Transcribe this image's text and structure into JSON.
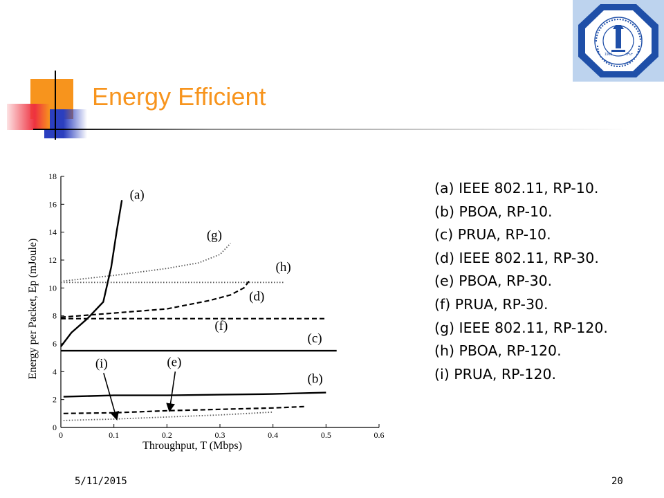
{
  "slide": {
    "title": "Energy Efficient",
    "date": "5/11/2015",
    "page_number": "20"
  },
  "colors": {
    "title": "#f7941d",
    "accent_orange": "#f7941d",
    "accent_blue": "#2b3fbf",
    "accent_red": "#ee3140",
    "logo_background": "#bdd3ee",
    "logo_seal": "#1f4fa8"
  },
  "logo": {
    "icon": "university-seal-icon",
    "year_left": "1963",
    "year_right": "١٣٨٣",
    "ring_text": "KING FAHD UNIVERSITY OF PETROLEUM & MINERALS",
    "arabic_text": "جامعة الملك فهد للبترول والمعادن"
  },
  "legend": [
    "(a)  IEEE 802.11, RP-10.",
    "(b)  PBOA, RP-10.",
    "(c)  PRUA, RP-10.",
    "(d)  IEEE 802.11, RP-30.",
    "(e)  PBOA, RP-30.",
    "(f)  PRUA, RP-30.",
    "(g)  IEEE 802.11, RP-120.",
    "(h)  PBOA, RP-120.",
    "(i)  PRUA, RP-120."
  ],
  "chart_data": {
    "type": "line",
    "xlabel": "Throughput, T (Mbps)",
    "ylabel": "Energy per Packet, Ep (mJoule)",
    "xlim": [
      0,
      0.6
    ],
    "ylim": [
      0,
      18
    ],
    "xticks": [
      "0",
      "0.1",
      "0.2",
      "0.3",
      "0.4",
      "0.5",
      "0.6"
    ],
    "yticks": [
      "0",
      "2",
      "4",
      "6",
      "8",
      "10",
      "12",
      "14",
      "16",
      "18"
    ],
    "grid": false,
    "legend_position": "right",
    "series": [
      {
        "name": "(a)",
        "style": "solid",
        "x": [
          0,
          0.02,
          0.05,
          0.08,
          0.095,
          0.105,
          0.115
        ],
        "y": [
          5.8,
          6.8,
          7.8,
          9.0,
          11.5,
          14.0,
          16.3
        ]
      },
      {
        "name": "(b)",
        "style": "solid",
        "x": [
          0.005,
          0.1,
          0.2,
          0.3,
          0.4,
          0.5
        ],
        "y": [
          2.2,
          2.3,
          2.3,
          2.35,
          2.4,
          2.5
        ]
      },
      {
        "name": "(c)",
        "style": "solid",
        "x": [
          0,
          0.52
        ],
        "y": [
          5.5,
          5.5
        ]
      },
      {
        "name": "(d)",
        "style": "dashed",
        "x": [
          0,
          0.1,
          0.2,
          0.28,
          0.32,
          0.345,
          0.355
        ],
        "y": [
          7.9,
          8.2,
          8.5,
          9.1,
          9.5,
          10.0,
          10.5
        ]
      },
      {
        "name": "(e)",
        "style": "dashed",
        "x": [
          0.005,
          0.1,
          0.2,
          0.3,
          0.4,
          0.46
        ],
        "y": [
          1.0,
          1.05,
          1.2,
          1.3,
          1.4,
          1.5
        ]
      },
      {
        "name": "(f)",
        "style": "dashed",
        "x": [
          0,
          0.5
        ],
        "y": [
          7.8,
          7.8
        ]
      },
      {
        "name": "(g)",
        "style": "dotted",
        "x": [
          0.005,
          0.1,
          0.2,
          0.26,
          0.3,
          0.32
        ],
        "y": [
          10.5,
          10.9,
          11.4,
          11.8,
          12.4,
          13.2
        ]
      },
      {
        "name": "(h)",
        "style": "dotted",
        "x": [
          0,
          0.42
        ],
        "y": [
          10.4,
          10.4
        ]
      },
      {
        "name": "(i)",
        "style": "dotted",
        "x": [
          0.005,
          0.1,
          0.2,
          0.3,
          0.4
        ],
        "y": [
          0.5,
          0.6,
          0.75,
          0.9,
          1.1
        ]
      }
    ],
    "annotations": [
      {
        "label": "(a)",
        "x": 0.13,
        "y": 16.4
      },
      {
        "label": "(b)",
        "x": 0.465,
        "y": 3.2
      },
      {
        "label": "(c)",
        "x": 0.465,
        "y": 6.1
      },
      {
        "label": "(d)",
        "x": 0.355,
        "y": 9.1
      },
      {
        "label": "(e)",
        "x": 0.2,
        "y": 4.4
      },
      {
        "label": "(f)",
        "x": 0.29,
        "y": 7.0
      },
      {
        "label": "(g)",
        "x": 0.275,
        "y": 13.5
      },
      {
        "label": "(h)",
        "x": 0.405,
        "y": 11.2
      },
      {
        "label": "(i)",
        "x": 0.065,
        "y": 4.3
      }
    ],
    "arrows": [
      {
        "from_label": "(i)",
        "to_x": 0.105,
        "to_y": 0.65
      },
      {
        "from_label": "(e)",
        "to_x": 0.205,
        "to_y": 1.25
      }
    ]
  }
}
